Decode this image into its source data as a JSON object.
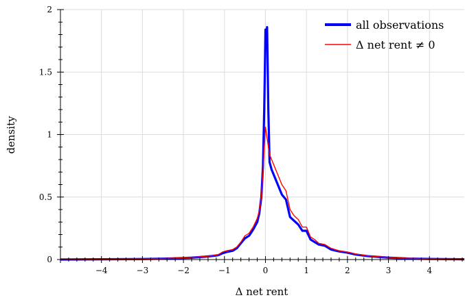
{
  "chart_data": {
    "type": "line",
    "xlabel": "Δ net rent",
    "ylabel": "density",
    "xlim": [
      -5,
      4.85
    ],
    "ylim": [
      0,
      2
    ],
    "x_ticks": [
      -4,
      -3,
      -2,
      -1,
      0,
      1,
      2,
      3,
      4
    ],
    "x_tick_labels": [
      "−4",
      "−3",
      "−2",
      "−1",
      "0",
      "1",
      "2",
      "3",
      "4"
    ],
    "y_ticks": [
      0,
      0.5,
      1,
      1.5,
      2
    ],
    "y_tick_labels": [
      "0",
      "0.5",
      "1",
      "1.5",
      "2"
    ],
    "grid": true,
    "legend_position": "top-right",
    "series": [
      {
        "name": "all observations",
        "color": "#0000ff",
        "points": [
          [
            -5,
            0
          ],
          [
            -4,
            0.002
          ],
          [
            -3,
            0.004
          ],
          [
            -2.5,
            0.007
          ],
          [
            -2,
            0.012
          ],
          [
            -1.8,
            0.015
          ],
          [
            -1.5,
            0.022
          ],
          [
            -1.3,
            0.028
          ],
          [
            -1.15,
            0.035
          ],
          [
            -1.05,
            0.05
          ],
          [
            -0.95,
            0.06
          ],
          [
            -0.8,
            0.07
          ],
          [
            -0.7,
            0.09
          ],
          [
            -0.6,
            0.13
          ],
          [
            -0.5,
            0.17
          ],
          [
            -0.4,
            0.19
          ],
          [
            -0.3,
            0.24
          ],
          [
            -0.2,
            0.3
          ],
          [
            -0.15,
            0.37
          ],
          [
            -0.1,
            0.5
          ],
          [
            -0.06,
            0.75
          ],
          [
            -0.03,
            1.2
          ],
          [
            -0.01,
            1.6
          ],
          [
            0,
            1.84
          ],
          [
            0.02,
            1.8
          ],
          [
            0.04,
            1.86
          ],
          [
            0.07,
            1.2
          ],
          [
            0.1,
            0.78
          ],
          [
            0.15,
            0.72
          ],
          [
            0.2,
            0.68
          ],
          [
            0.3,
            0.6
          ],
          [
            0.4,
            0.52
          ],
          [
            0.5,
            0.48
          ],
          [
            0.6,
            0.34
          ],
          [
            0.7,
            0.31
          ],
          [
            0.8,
            0.28
          ],
          [
            0.9,
            0.23
          ],
          [
            1.0,
            0.23
          ],
          [
            1.1,
            0.16
          ],
          [
            1.2,
            0.14
          ],
          [
            1.3,
            0.12
          ],
          [
            1.45,
            0.11
          ],
          [
            1.6,
            0.08
          ],
          [
            1.8,
            0.065
          ],
          [
            2.0,
            0.055
          ],
          [
            2.2,
            0.04
          ],
          [
            2.5,
            0.027
          ],
          [
            3.0,
            0.015
          ],
          [
            3.5,
            0.008
          ],
          [
            4.0,
            0.005
          ],
          [
            4.85,
            0.002
          ]
        ]
      },
      {
        "name": "Δ net rent ≠ 0",
        "color": "#ff0000",
        "points": [
          [
            -5,
            0
          ],
          [
            -4,
            0.002
          ],
          [
            -3,
            0.005
          ],
          [
            -2.5,
            0.008
          ],
          [
            -2,
            0.014
          ],
          [
            -1.8,
            0.017
          ],
          [
            -1.5,
            0.024
          ],
          [
            -1.3,
            0.03
          ],
          [
            -1.15,
            0.04
          ],
          [
            -1.05,
            0.06
          ],
          [
            -0.95,
            0.07
          ],
          [
            -0.8,
            0.08
          ],
          [
            -0.7,
            0.1
          ],
          [
            -0.6,
            0.14
          ],
          [
            -0.5,
            0.19
          ],
          [
            -0.4,
            0.21
          ],
          [
            -0.3,
            0.26
          ],
          [
            -0.2,
            0.33
          ],
          [
            -0.15,
            0.39
          ],
          [
            -0.1,
            0.5
          ],
          [
            -0.06,
            0.7
          ],
          [
            -0.03,
            0.88
          ],
          [
            0,
            1.06
          ],
          [
            0.02,
            1.02
          ],
          [
            0.05,
            0.95
          ],
          [
            0.08,
            0.88
          ],
          [
            0.1,
            0.84
          ],
          [
            0.15,
            0.8
          ],
          [
            0.2,
            0.76
          ],
          [
            0.3,
            0.68
          ],
          [
            0.4,
            0.6
          ],
          [
            0.5,
            0.55
          ],
          [
            0.6,
            0.4
          ],
          [
            0.7,
            0.35
          ],
          [
            0.8,
            0.32
          ],
          [
            0.9,
            0.26
          ],
          [
            1.0,
            0.26
          ],
          [
            1.1,
            0.18
          ],
          [
            1.2,
            0.16
          ],
          [
            1.3,
            0.13
          ],
          [
            1.45,
            0.12
          ],
          [
            1.6,
            0.09
          ],
          [
            1.8,
            0.07
          ],
          [
            2.0,
            0.06
          ],
          [
            2.2,
            0.045
          ],
          [
            2.5,
            0.03
          ],
          [
            3.0,
            0.017
          ],
          [
            3.5,
            0.01
          ],
          [
            4.0,
            0.006
          ],
          [
            4.85,
            0.003
          ]
        ]
      }
    ]
  }
}
